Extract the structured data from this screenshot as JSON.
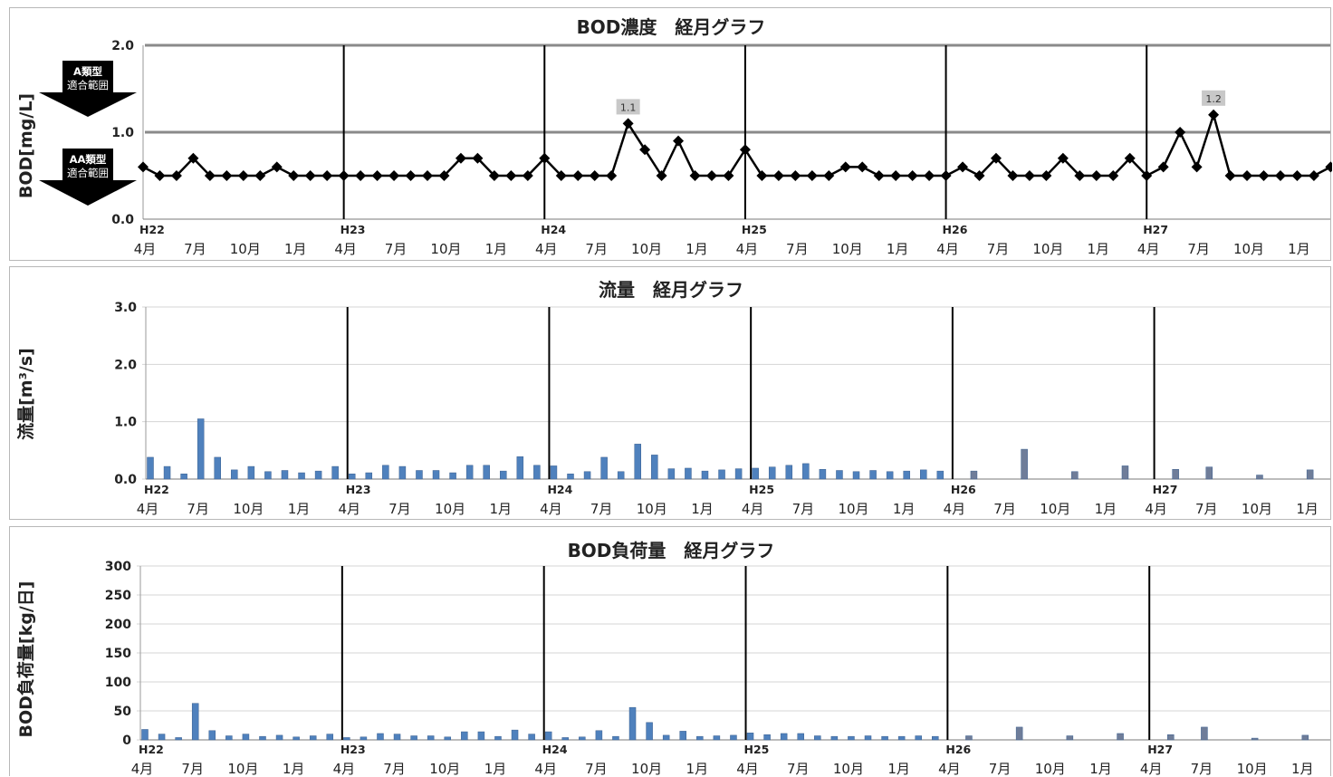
{
  "chart_data": [
    {
      "type": "line",
      "title": "BOD濃度　経月グラフ",
      "ylabel": "BOD[mg/L]",
      "ylim": [
        0,
        2.0
      ],
      "yticks": [
        "0.0",
        "1.0",
        "2.0"
      ],
      "hlines": [
        1.0,
        2.0
      ],
      "era_labels": [
        "H22",
        "H23",
        "H24",
        "H25",
        "H26",
        "H27"
      ],
      "month_labels": [
        "4月",
        "7月",
        "10月",
        "1月",
        "4月",
        "7月",
        "10月",
        "1月",
        "4月",
        "7月",
        "10月",
        "1月",
        "4月",
        "7月",
        "10月",
        "1月",
        "4月",
        "7月",
        "10月",
        "1月",
        "4月",
        "7月",
        "10月",
        "1月"
      ],
      "range_labels": [
        {
          "lines": [
            "A類型",
            "適合範囲"
          ]
        },
        {
          "lines": [
            "AA類型",
            "適合範囲"
          ]
        }
      ],
      "data_labels": [
        {
          "index": 29,
          "text": "1.1"
        },
        {
          "index": 64,
          "text": "1.2"
        }
      ],
      "values": [
        0.6,
        0.5,
        0.5,
        0.7,
        0.5,
        0.5,
        0.5,
        0.5,
        0.6,
        0.5,
        0.5,
        0.5,
        0.5,
        0.5,
        0.5,
        0.5,
        0.5,
        0.5,
        0.5,
        0.7,
        0.7,
        0.5,
        0.5,
        0.5,
        0.7,
        0.5,
        0.5,
        0.5,
        0.5,
        1.1,
        0.8,
        0.5,
        0.9,
        0.5,
        0.5,
        0.5,
        0.8,
        0.5,
        0.5,
        0.5,
        0.5,
        0.5,
        0.6,
        0.6,
        0.5,
        0.5,
        0.5,
        0.5,
        0.5,
        0.6,
        0.5,
        0.7,
        0.5,
        0.5,
        0.5,
        0.7,
        0.5,
        0.5,
        0.5,
        0.7,
        0.5,
        0.6,
        1.0,
        0.6,
        1.2,
        0.5,
        0.5,
        0.5,
        0.5,
        0.5,
        0.5,
        0.6,
        0.5
      ]
    },
    {
      "type": "bar",
      "title": "流量　経月グラフ",
      "ylabel": "流量[m³/s]",
      "ylim": [
        0,
        3.0
      ],
      "yticks": [
        "0.0",
        "1.0",
        "2.0",
        "3.0"
      ],
      "era_labels": [
        "H22",
        "H23",
        "H24",
        "H25",
        "H26",
        "H27"
      ],
      "month_labels": [
        "4月",
        "7月",
        "10月",
        "1月",
        "4月",
        "7月",
        "10月",
        "1月",
        "4月",
        "7月",
        "10月",
        "1月",
        "4月",
        "7月",
        "10月",
        "1月",
        "4月",
        "7月",
        "10月",
        "1月",
        "4月",
        "7月",
        "10月",
        "1月"
      ],
      "colors": {
        "bar": "#4f81bd",
        "bar_late": "#6f7d99"
      },
      "values": [
        0.38,
        0.22,
        0.09,
        1.05,
        0.38,
        0.16,
        0.22,
        0.13,
        0.15,
        0.11,
        0.14,
        0.22,
        0.09,
        0.11,
        0.24,
        0.22,
        0.15,
        0.15,
        0.11,
        0.24,
        0.24,
        0.14,
        0.39,
        0.24,
        0.23,
        0.09,
        0.13,
        0.38,
        0.13,
        0.61,
        0.42,
        0.18,
        0.19,
        0.14,
        0.16,
        0.18,
        0.19,
        0.21,
        0.24,
        0.27,
        0.17,
        0.15,
        0.13,
        0.15,
        0.13,
        0.14,
        0.16,
        0.14,
        null,
        0.14,
        null,
        null,
        0.52,
        null,
        null,
        0.13,
        null,
        null,
        0.23,
        null,
        null,
        0.17,
        null,
        0.21,
        null,
        null,
        0.07,
        null,
        null,
        0.16
      ]
    },
    {
      "type": "bar",
      "title": "BOD負荷量　経月グラフ",
      "ylabel": "BOD負荷量[kg/日]",
      "ylim": [
        0,
        300
      ],
      "yticks": [
        "0",
        "50",
        "100",
        "150",
        "200",
        "250",
        "300"
      ],
      "era_labels": [
        "H22",
        "H23",
        "H24",
        "H25",
        "H26",
        "H27"
      ],
      "month_labels": [
        "4月",
        "7月",
        "10月",
        "1月",
        "4月",
        "7月",
        "10月",
        "1月",
        "4月",
        "7月",
        "10月",
        "1月",
        "4月",
        "7月",
        "10月",
        "1月",
        "4月",
        "7月",
        "10月",
        "1月",
        "4月",
        "7月",
        "10月",
        "1月"
      ],
      "colors": {
        "bar": "#4f81bd",
        "bar_late": "#6f7d99"
      },
      "values": [
        18,
        10,
        4,
        63,
        16,
        7,
        10,
        6,
        8,
        5,
        7,
        10,
        4,
        5,
        11,
        10,
        7,
        7,
        5,
        14,
        14,
        6,
        17,
        10,
        14,
        4,
        5,
        16,
        6,
        56,
        30,
        8,
        15,
        6,
        7,
        8,
        12,
        9,
        11,
        11,
        7,
        6,
        6,
        7,
        6,
        6,
        7,
        6,
        null,
        7,
        null,
        null,
        22,
        null,
        null,
        7,
        null,
        null,
        11,
        null,
        null,
        9,
        null,
        22,
        null,
        null,
        3,
        null,
        null,
        8
      ]
    }
  ]
}
